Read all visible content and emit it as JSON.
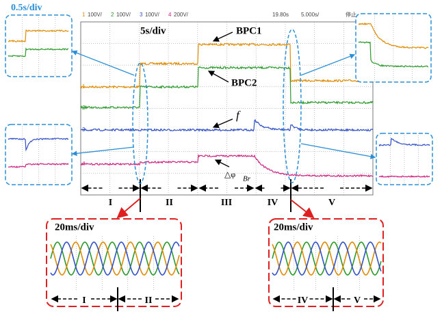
{
  "scope_header": {
    "channels": [
      {
        "number": "1",
        "scale": "100V/"
      },
      {
        "number": "2",
        "scale": "100V/"
      },
      {
        "number": "3",
        "scale": "100V/"
      },
      {
        "number": "4",
        "scale": "200V/"
      }
    ],
    "time_position": "19.80s",
    "time_scale": "5.000s/",
    "status": "停止"
  },
  "channel_markers": [
    "1",
    "2",
    "3",
    "4"
  ],
  "annotations": {
    "zoom_slow": "0.5s/div",
    "main_scale": "5s/div",
    "bpc1": "BPC1",
    "bpc2": "BPC2",
    "frequency": "f",
    "phase": {
      "symbol": "△φ",
      "subscript": "Br"
    }
  },
  "intervals": [
    "I",
    "II",
    "III",
    "IV",
    "V"
  ],
  "insets": [
    {
      "scale": "20ms/div",
      "intervals": [
        "I",
        "II"
      ]
    },
    {
      "scale": "20ms/div",
      "intervals": [
        "IV",
        "V"
      ]
    }
  ]
}
